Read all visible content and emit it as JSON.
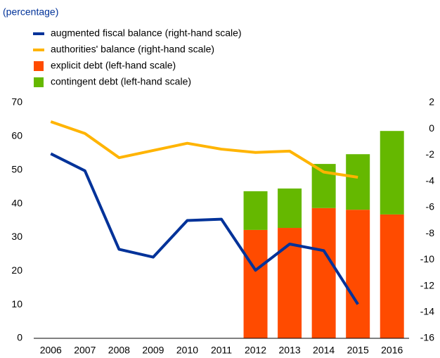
{
  "chart_data": {
    "type": "bar",
    "subtitle": "(percentage)",
    "categories": [
      "2006",
      "2007",
      "2008",
      "2009",
      "2010",
      "2011",
      "2012",
      "2013",
      "2014",
      "2015",
      "2016"
    ],
    "series": [
      {
        "name": "augmented fiscal balance (right-hand scale)",
        "type": "line",
        "axis": "y2",
        "color": "#003299",
        "values": [
          -1.9,
          -3.2,
          -9.2,
          -9.8,
          -7.0,
          -6.9,
          -10.8,
          -8.8,
          -9.3,
          -13.4,
          null
        ]
      },
      {
        "name": "authorities' balance (right-hand scale)",
        "type": "line",
        "axis": "y2",
        "color": "#ffb400",
        "values": [
          0.55,
          -0.35,
          -2.2,
          -1.65,
          -1.1,
          -1.55,
          -1.8,
          -1.7,
          -3.3,
          -3.7,
          null
        ]
      },
      {
        "name": "explicit debt (left-hand scale)",
        "type": "bar",
        "color": "#ff4b00",
        "values": [
          null,
          null,
          null,
          null,
          null,
          null,
          32.2,
          32.8,
          38.7,
          38.2,
          36.8
        ]
      },
      {
        "name": "contingent debt (left-hand scale)",
        "type": "bar",
        "color": "#65b800",
        "values": [
          null,
          null,
          null,
          null,
          null,
          null,
          11.5,
          11.7,
          13.1,
          16.5,
          24.8
        ]
      }
    ],
    "ylim": [
      0,
      70
    ],
    "yticks": [
      0,
      10,
      20,
      30,
      40,
      50,
      60,
      70
    ],
    "y2lim": [
      -16,
      2
    ],
    "y2ticks": [
      -16,
      -14,
      -12,
      -10,
      -8,
      -6,
      -4,
      -2,
      0,
      2
    ],
    "stacked": true,
    "grid": false,
    "legend": "top-left"
  }
}
